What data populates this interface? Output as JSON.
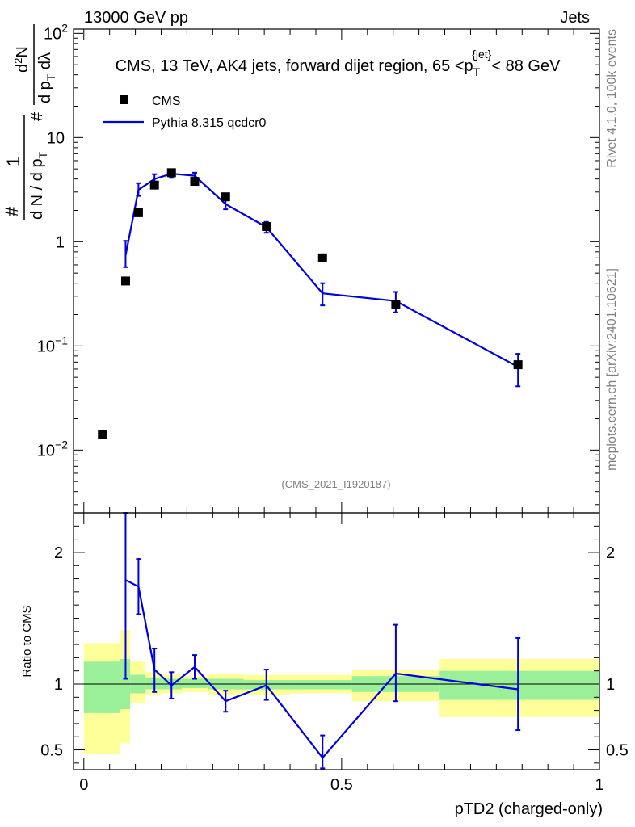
{
  "header": {
    "left": "13000 GeV pp",
    "right": "Jets"
  },
  "side": {
    "rivet": "Rivet 4.1.0,  100k events",
    "mcplots": "mcplots.cern.ch [arXiv:2401.10621]"
  },
  "colors": {
    "data": "#000000",
    "mc": "#0000dd",
    "band_inner": "#99f099",
    "band_outer": "#ffff99"
  },
  "chart_data": [
    {
      "id": "main",
      "type": "scatter",
      "title_parts": [
        "CMS, 13 TeV, AK4 jets, forward dijet region, 65 <p",
        "T",
        "{jet}",
        "< 88 GeV"
      ],
      "ylabel_parts": {
        "num_prefix": "1",
        "num_hash": "#",
        "den": "d N / d p",
        "den_sub": "T",
        "right_top": "d",
        "right_top_sup": "2",
        "right_top_tail": "N",
        "right_bot": "d p",
        "right_bot_sub": "T",
        "right_bot_tail": " dλ",
        "left_hash": "#"
      },
      "yscale": "log",
      "ylim": [
        0.0025,
        110
      ],
      "xlim": [
        -0.02,
        1.0
      ],
      "yticks": [
        {
          "v": 100,
          "label": "10",
          "sup": "2"
        },
        {
          "v": 10,
          "label": "10",
          "sup": ""
        },
        {
          "v": 1,
          "label": "1",
          "sup": ""
        },
        {
          "v": 0.1,
          "label": "10",
          "sup": "−1"
        },
        {
          "v": 0.01,
          "label": "10",
          "sup": "−2"
        }
      ],
      "watermark": "(CMS_2021_I1920187)",
      "legend": [
        {
          "name": "CMS",
          "kind": "marker"
        },
        {
          "name": "Pythia 8.315 qcdcr0",
          "kind": "line"
        }
      ],
      "series": [
        {
          "name": "CMS",
          "x": [
            0.036,
            0.081,
            0.106,
            0.137,
            0.17,
            0.215,
            0.275,
            0.354,
            0.463,
            0.605,
            0.842
          ],
          "values": [
            0.0142,
            0.42,
            1.9,
            3.5,
            4.6,
            3.8,
            2.7,
            1.4,
            0.7,
            0.25,
            0.066
          ]
        },
        {
          "name": "Pythia 8.315 qcdcr0",
          "x": [
            0.081,
            0.106,
            0.137,
            0.17,
            0.215,
            0.275,
            0.354,
            0.463,
            0.605,
            0.842
          ],
          "values": [
            0.74,
            3.15,
            4.0,
            4.5,
            4.3,
            2.3,
            1.38,
            0.32,
            0.27,
            0.063
          ],
          "err_lo": [
            0.57,
            2.75,
            3.55,
            4.1,
            4.0,
            2.05,
            1.22,
            0.245,
            0.21,
            0.041
          ],
          "err_hi": [
            1.02,
            3.65,
            4.45,
            4.9,
            4.6,
            2.6,
            1.55,
            0.4,
            0.33,
            0.084
          ]
        }
      ]
    },
    {
      "id": "ratio",
      "type": "line",
      "ylabel": "Ratio to CMS",
      "ylim": [
        0.35,
        2.3
      ],
      "xlim": [
        -0.02,
        1.0
      ],
      "xlabel": "pTD2 (charged-only)",
      "yticks": [
        {
          "v": 2,
          "label": "2"
        },
        {
          "v": 1,
          "label": "1"
        },
        {
          "v": 0.5,
          "label": "0.5"
        }
      ],
      "xticks": [
        {
          "v": 0,
          "label": "0"
        },
        {
          "v": 0.5,
          "label": "0.5"
        },
        {
          "v": 1,
          "label": "1"
        }
      ],
      "bands": [
        {
          "x0": 0.0,
          "x1": 0.07,
          "outer": [
            0.47,
            1.31
          ],
          "inner": [
            0.78,
            1.17
          ]
        },
        {
          "x0": 0.07,
          "x1": 0.09,
          "outer": [
            0.55,
            1.41
          ],
          "inner": [
            0.81,
            1.19
          ]
        },
        {
          "x0": 0.09,
          "x1": 0.12,
          "outer": [
            0.86,
            1.17
          ],
          "inner": [
            0.93,
            1.07
          ]
        },
        {
          "x0": 0.12,
          "x1": 0.15,
          "outer": [
            0.92,
            1.09
          ],
          "inner": [
            0.96,
            1.05
          ]
        },
        {
          "x0": 0.15,
          "x1": 0.19,
          "outer": [
            0.93,
            1.07
          ],
          "inner": [
            0.96,
            1.04
          ]
        },
        {
          "x0": 0.19,
          "x1": 0.24,
          "outer": [
            0.94,
            1.06
          ],
          "inner": [
            0.97,
            1.04
          ]
        },
        {
          "x0": 0.24,
          "x1": 0.31,
          "outer": [
            0.92,
            1.08
          ],
          "inner": [
            0.96,
            1.04
          ]
        },
        {
          "x0": 0.31,
          "x1": 0.4,
          "outer": [
            0.92,
            1.07
          ],
          "inner": [
            0.96,
            1.03
          ]
        },
        {
          "x0": 0.4,
          "x1": 0.52,
          "outer": [
            0.93,
            1.07
          ],
          "inner": [
            0.96,
            1.03
          ]
        },
        {
          "x0": 0.52,
          "x1": 0.69,
          "outer": [
            0.87,
            1.11
          ],
          "inner": [
            0.94,
            1.06
          ]
        },
        {
          "x0": 0.69,
          "x1": 1.0,
          "outer": [
            0.75,
            1.19
          ],
          "inner": [
            0.88,
            1.1
          ]
        }
      ],
      "series": [
        {
          "name": "Pythia 8.315 qcdcr0",
          "x": [
            0.081,
            0.106,
            0.137,
            0.17,
            0.215,
            0.275,
            0.354,
            0.463,
            0.605,
            0.842
          ],
          "values": [
            1.79,
            1.74,
            1.11,
            0.99,
            1.13,
            0.87,
            0.99,
            0.44,
            1.08,
            0.96
          ],
          "err_lo": [
            1.04,
            1.53,
            0.94,
            0.89,
            1.04,
            0.79,
            0.88,
            0.36,
            0.87,
            0.65
          ],
          "err_hi": [
            2.35,
            1.95,
            1.27,
            1.09,
            1.22,
            0.95,
            1.11,
            0.61,
            1.45,
            1.35
          ]
        }
      ]
    }
  ]
}
